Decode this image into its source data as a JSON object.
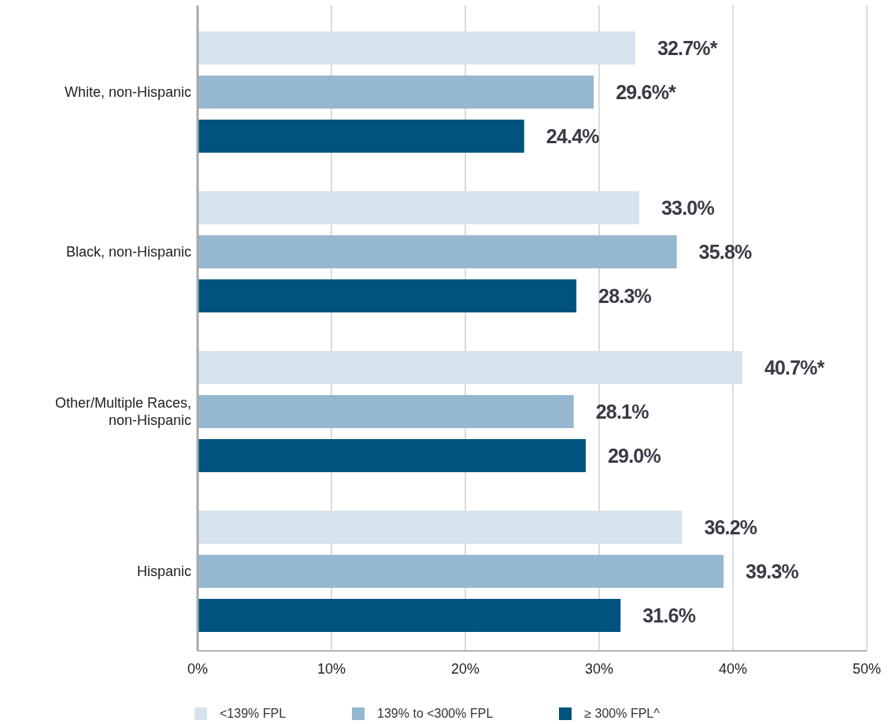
{
  "chart_data": {
    "type": "bar",
    "orientation": "horizontal",
    "categories": [
      "White, non-Hispanic",
      "Black, non-Hispanic",
      "Other/Multiple Races, non-Hispanic",
      "Hispanic"
    ],
    "series": [
      {
        "name": "<139% FPL",
        "color": "#d6e3ed",
        "values": [
          32.7,
          33.0,
          40.7,
          36.2
        ],
        "value_labels": [
          "32.7%*",
          "33.0%",
          "40.7%*",
          "36.2%"
        ]
      },
      {
        "name": "139% to <300% FPL",
        "color": "#96b7d0",
        "values": [
          29.6,
          35.8,
          28.1,
          39.3
        ],
        "value_labels": [
          "29.6%*",
          "35.8%",
          "28.1%",
          "39.3%"
        ]
      },
      {
        "name": "≥ 300% FPL^",
        "color": "#00537e",
        "values": [
          24.4,
          28.3,
          29.0,
          31.6
        ],
        "value_labels": [
          "24.4%",
          "28.3%",
          "29.0%",
          "31.6%"
        ]
      }
    ],
    "xlim": [
      0,
      50
    ],
    "xticks": [
      {
        "value": 0,
        "label": "0%"
      },
      {
        "value": 10,
        "label": "10%"
      },
      {
        "value": 20,
        "label": "20%"
      },
      {
        "value": 30,
        "label": "30%"
      },
      {
        "value": 40,
        "label": "40%"
      },
      {
        "value": 50,
        "label": "50%"
      }
    ],
    "grid": "x",
    "legend": "bottom"
  }
}
